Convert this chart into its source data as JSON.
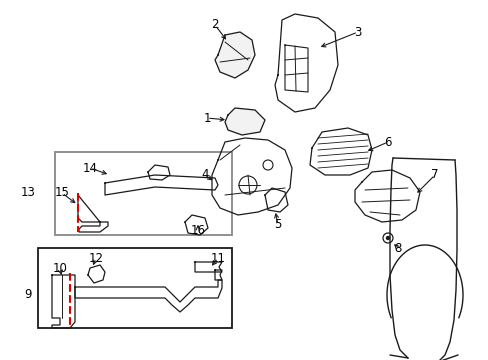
{
  "bg_color": "#ffffff",
  "line_color": "#1a1a1a",
  "gray_color": "#888888",
  "red_dash_color": "#dd0000",
  "figsize": [
    4.89,
    3.6
  ],
  "dpi": 100
}
